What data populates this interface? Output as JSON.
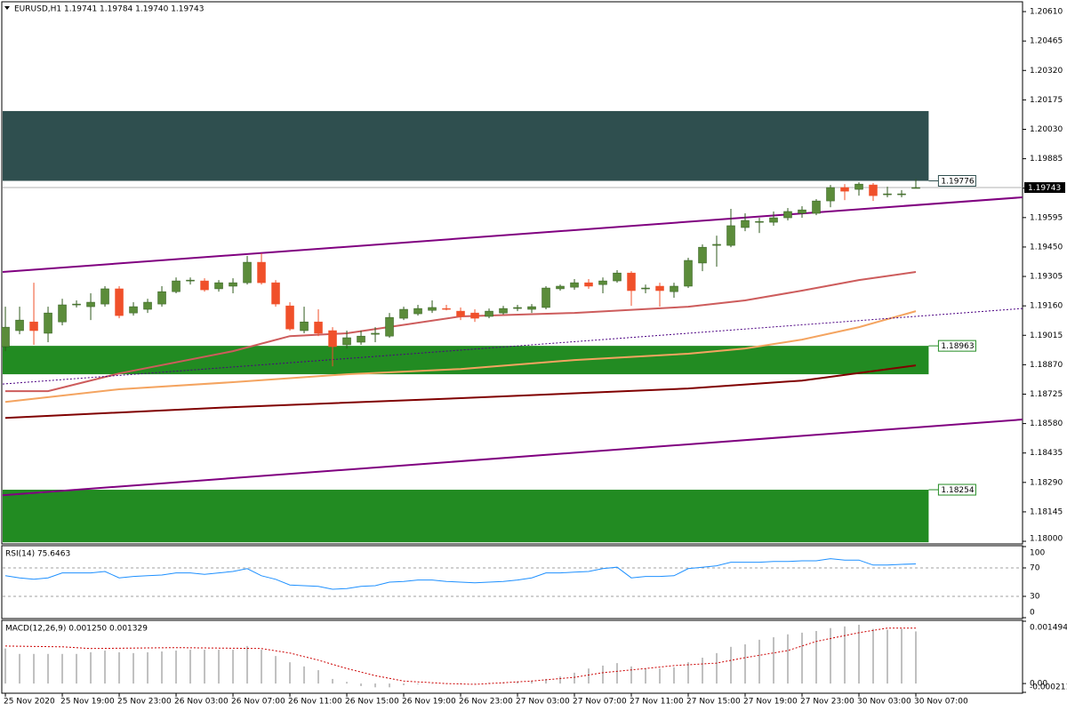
{
  "chart_data": [
    {
      "type": "candlestick",
      "title": "EURUSD,H1 1.19741 1.19784 1.19740 1.19743",
      "categories": [
        "25 Nov 2020",
        null,
        null,
        null,
        "25 Nov 19:00",
        null,
        null,
        null,
        "25 Nov 23:00",
        null,
        null,
        null,
        "26 Nov 03:00",
        null,
        null,
        null,
        "26 Nov 07:00",
        null,
        null,
        null,
        "26 Nov 11:00",
        null,
        null,
        null,
        "26 Nov 15:00",
        null,
        null,
        null,
        "26 Nov 19:00",
        null,
        null,
        null,
        "26 Nov 23:00",
        null,
        null,
        null,
        "27 Nov 03:00",
        null,
        null,
        null,
        "27 Nov 07:00",
        null,
        null,
        null,
        "27 Nov 11:00",
        null,
        null,
        null,
        "27 Nov 15:00",
        null,
        null,
        null,
        "27 Nov 19:00",
        null,
        null,
        null,
        "27 Nov 23:00",
        null,
        null,
        null,
        "30 Nov 03:00",
        null,
        null,
        null,
        "30 Nov 07:00"
      ],
      "open": [
        1.18959,
        1.19038,
        1.19081,
        1.19025,
        1.19081,
        1.19165,
        1.19156,
        1.19169,
        1.19244,
        1.19125,
        1.19143,
        1.19169,
        1.1923,
        1.19283,
        1.19283,
        1.19244,
        1.19257,
        1.19274,
        1.19375,
        1.19274,
        1.1916,
        1.19038,
        1.19081,
        1.19038,
        1.18968,
        1.18981,
        1.1902,
        1.19011,
        1.19099,
        1.19121,
        1.19138,
        1.19147,
        1.19134,
        1.19125,
        1.19108,
        1.19125,
        1.19147,
        1.19143,
        1.19152,
        1.19244,
        1.19252,
        1.19274,
        1.19265,
        1.19283,
        1.19322,
        1.19244,
        1.19257,
        1.1923,
        1.19257,
        1.19371,
        1.19458,
        1.19458,
        1.19546,
        1.19572,
        1.19572,
        1.19594,
        1.19616,
        1.19616,
        1.19677,
        1.19743,
        1.19734,
        1.19756,
        1.19708,
        1.19708,
        1.19741
      ],
      "high": [
        1.19156,
        1.19156,
        1.19274,
        1.19156,
        1.19195,
        1.19187,
        1.19222,
        1.19257,
        1.19257,
        1.19178,
        1.19195,
        1.19257,
        1.193,
        1.193,
        1.19296,
        1.19287,
        1.19296,
        1.19406,
        1.19419,
        1.19287,
        1.19178,
        1.19156,
        1.19143,
        1.19055,
        1.19038,
        1.19038,
        1.19055,
        1.19125,
        1.19156,
        1.19165,
        1.19187,
        1.19165,
        1.19152,
        1.19143,
        1.19147,
        1.1916,
        1.19165,
        1.19169,
        1.19257,
        1.19265,
        1.19292,
        1.19292,
        1.193,
        1.19336,
        1.19331,
        1.19265,
        1.19274,
        1.19274,
        1.19397,
        1.19463,
        1.19506,
        1.19638,
        1.19616,
        1.19594,
        1.19625,
        1.19642,
        1.19651,
        1.19686,
        1.19756,
        1.1976,
        1.19769,
        1.19765,
        1.19747,
        1.1973,
        1.19784
      ],
      "low": [
        1.18937,
        1.1902,
        1.18968,
        1.18981,
        1.19064,
        1.19152,
        1.1909,
        1.19156,
        1.19099,
        1.19112,
        1.19125,
        1.19156,
        1.19222,
        1.19265,
        1.1923,
        1.1923,
        1.19222,
        1.19265,
        1.19265,
        1.19156,
        1.19038,
        1.19025,
        1.19011,
        1.18862,
        1.1895,
        1.18968,
        1.18981,
        1.19003,
        1.1909,
        1.19112,
        1.19125,
        1.19138,
        1.1909,
        1.19081,
        1.19099,
        1.19117,
        1.19134,
        1.19125,
        1.19143,
        1.19235,
        1.19239,
        1.19244,
        1.19222,
        1.19274,
        1.1916,
        1.19222,
        1.19156,
        1.192,
        1.19248,
        1.19331,
        1.19353,
        1.19449,
        1.19528,
        1.19519,
        1.19555,
        1.19581,
        1.19594,
        1.19607,
        1.19646,
        1.19681,
        1.19703,
        1.19677,
        1.19695,
        1.19695,
        1.1974
      ],
      "close": [
        1.19055,
        1.1909,
        1.19038,
        1.19125,
        1.19165,
        1.19169,
        1.19178,
        1.19244,
        1.19112,
        1.19156,
        1.19178,
        1.1923,
        1.19283,
        1.19287,
        1.19239,
        1.19274,
        1.19274,
        1.19375,
        1.19274,
        1.19169,
        1.19046,
        1.19081,
        1.19025,
        1.18959,
        1.19003,
        1.19011,
        1.19025,
        1.19103,
        1.19143,
        1.19147,
        1.19152,
        1.19145,
        1.19108,
        1.19099,
        1.19134,
        1.19147,
        1.19152,
        1.19156,
        1.19248,
        1.19257,
        1.19274,
        1.19257,
        1.19283,
        1.19322,
        1.19235,
        1.19248,
        1.19235,
        1.19257,
        1.19384,
        1.19449,
        1.19463,
        1.19555,
        1.19581,
        1.19576,
        1.19594,
        1.19625,
        1.19633,
        1.19677,
        1.19743,
        1.19725,
        1.1976,
        1.19703,
        1.19712,
        1.19712,
        1.19743
      ],
      "up_color": "#5b8c3a",
      "down_color": "#f0502a",
      "xlim": [
        -0.19,
        71.5
      ],
      "ylim": [
        1.17987,
        1.20654
      ],
      "yticks": [
        {
          "value": 1.2061,
          "label": "1.20610"
        },
        1.20465,
        {
          "value": 1.2032,
          "label": "1.20320"
        },
        1.20175,
        {
          "value": 1.2003,
          "label": "1.20030"
        },
        1.19885,
        {
          "value": 1.1974,
          "label": "1.19740"
        },
        1.19595,
        {
          "value": 1.1945,
          "label": "1.19450"
        },
        1.19305,
        {
          "value": 1.1916,
          "label": "1.19160"
        },
        1.19015,
        {
          "value": 1.1887,
          "label": "1.18870"
        },
        1.18725,
        {
          "value": 1.1858,
          "label": "1.18580"
        },
        1.18435,
        {
          "value": 1.1829,
          "label": "1.18290"
        },
        1.18145,
        {
          "value": 1.18,
          "label": "1.18000"
        }
      ],
      "zones": [
        {
          "low": 1.19776,
          "high": 1.2012,
          "color": "#2f4f4f",
          "label_at": "low"
        },
        {
          "low": 1.18823,
          "high": 1.18963,
          "color": "#228b22",
          "label_at": "high"
        },
        {
          "low": 1.17995,
          "high": 1.18254,
          "color": "#228b22",
          "label_at": "high"
        }
      ],
      "overlays": [
        {
          "x": [
            0,
            3,
            8,
            16,
            20,
            24,
            32,
            40,
            48,
            52,
            56,
            60,
            64
          ],
          "values": [
            1.1874,
            1.1874,
            1.18827,
            1.18937,
            1.19011,
            1.19025,
            1.19108,
            1.19125,
            1.19156,
            1.19187,
            1.19235,
            1.19287,
            1.19327
          ],
          "color": "#cd5c5c",
          "style": "solid"
        },
        {
          "x": [
            0,
            8,
            16,
            24,
            32,
            40,
            48,
            52,
            56,
            60,
            64
          ],
          "values": [
            1.18687,
            1.18749,
            1.18784,
            1.18823,
            1.18849,
            1.18893,
            1.18924,
            1.1895,
            1.18994,
            1.19055,
            1.19134
          ],
          "color": "#f4a460",
          "style": "solid"
        },
        {
          "x": [
            0,
            16,
            32,
            48,
            56,
            64
          ],
          "values": [
            1.18608,
            1.18661,
            1.18705,
            1.18753,
            1.18792,
            1.18867
          ],
          "color": "#800000",
          "style": "solid"
        },
        {
          "x": [
            -0.19,
            71.5
          ],
          "values": [
            1.19327,
            1.19695
          ],
          "color": "#800080",
          "style": "solid"
        },
        {
          "x": [
            -0.19,
            71.5
          ],
          "values": [
            1.18227,
            1.186
          ],
          "color": "#800080",
          "style": "solid"
        },
        {
          "x": [
            -0.19,
            71.5
          ],
          "values": [
            1.18775,
            1.19147
          ],
          "color": "#4b0082",
          "style": "dotted"
        }
      ],
      "last": 1.19743
    },
    {
      "type": "line",
      "title": "RSI(14) 75.6463",
      "values": [
        59,
        56,
        54,
        56,
        63,
        63,
        63,
        65,
        56,
        58,
        59,
        60,
        63,
        63,
        61,
        63,
        65,
        69,
        59,
        54,
        46,
        45,
        44,
        40,
        41,
        44,
        45,
        50,
        51,
        53,
        53,
        51,
        50,
        49,
        50,
        51,
        53,
        56,
        63,
        63,
        64,
        65,
        69,
        71,
        56,
        58,
        58,
        59,
        69,
        71,
        73,
        78,
        78,
        78,
        79,
        79,
        80,
        80,
        83,
        81,
        81,
        74,
        74,
        75,
        75.6463
      ],
      "color": "#1e90ff",
      "ylim": [
        0,
        100
      ],
      "yticks": [
        100,
        70,
        30,
        0
      ],
      "levels": [
        70,
        30
      ]
    },
    {
      "type": "macd",
      "title": "MACD(12,26,9) 0.001250 0.001329",
      "values": [
        0.00084,
        0.00071,
        0.00071,
        0.00071,
        0.00071,
        0.00071,
        0.00075,
        0.00079,
        0.00075,
        0.00073,
        0.00075,
        0.00077,
        0.00079,
        0.00081,
        0.00081,
        0.00081,
        0.00081,
        0.0009,
        0.00081,
        0.00066,
        0.00051,
        0.00041,
        0.00032,
        0.00011,
        4e-05,
        -6e-05,
        -9e-05,
        -9e-05,
        -4e-05,
        -2e-05,
        -1e-05,
        0,
        1e-05,
        1e-05,
        2e-05,
        3e-05,
        5e-05,
        7e-05,
        0.00011,
        0.00017,
        0.00026,
        0.00036,
        0.00043,
        0.00049,
        0.00041,
        0.00036,
        0.00036,
        0.00039,
        0.00051,
        0.00062,
        0.00073,
        0.00088,
        0.00094,
        0.00105,
        0.00111,
        0.00118,
        0.00122,
        0.00126,
        0.00133,
        0.00137,
        0.00141,
        0.00131,
        0.00129,
        0.00131,
        0.00125
      ],
      "color": "#c0c0c0",
      "signal": {
        "x": [
          0,
          4,
          6,
          12,
          18,
          20,
          22,
          24,
          26,
          28,
          31,
          33,
          35,
          37,
          40,
          42,
          45,
          47,
          50,
          52,
          55,
          57,
          60,
          62,
          64
        ],
        "values": [
          0.0009,
          0.00088,
          0.00084,
          0.00086,
          0.00084,
          0.00073,
          0.00056,
          0.00036,
          0.00019,
          6e-05,
          0,
          -2e-05,
          2e-05,
          6e-05,
          0.00015,
          0.00026,
          0.00036,
          0.00043,
          0.00049,
          0.00062,
          0.00079,
          0.00101,
          0.00122,
          0.00133,
          0.001329
        ],
        "color": "#cc0000"
      },
      "ylim": [
        -0.000211,
        0.001494
      ],
      "yticks": [
        0.001494,
        {
          "value": 0,
          "label": "0.00"
        },
        {
          "value": -0.000211,
          "label": "-0.000211"
        }
      ]
    }
  ]
}
